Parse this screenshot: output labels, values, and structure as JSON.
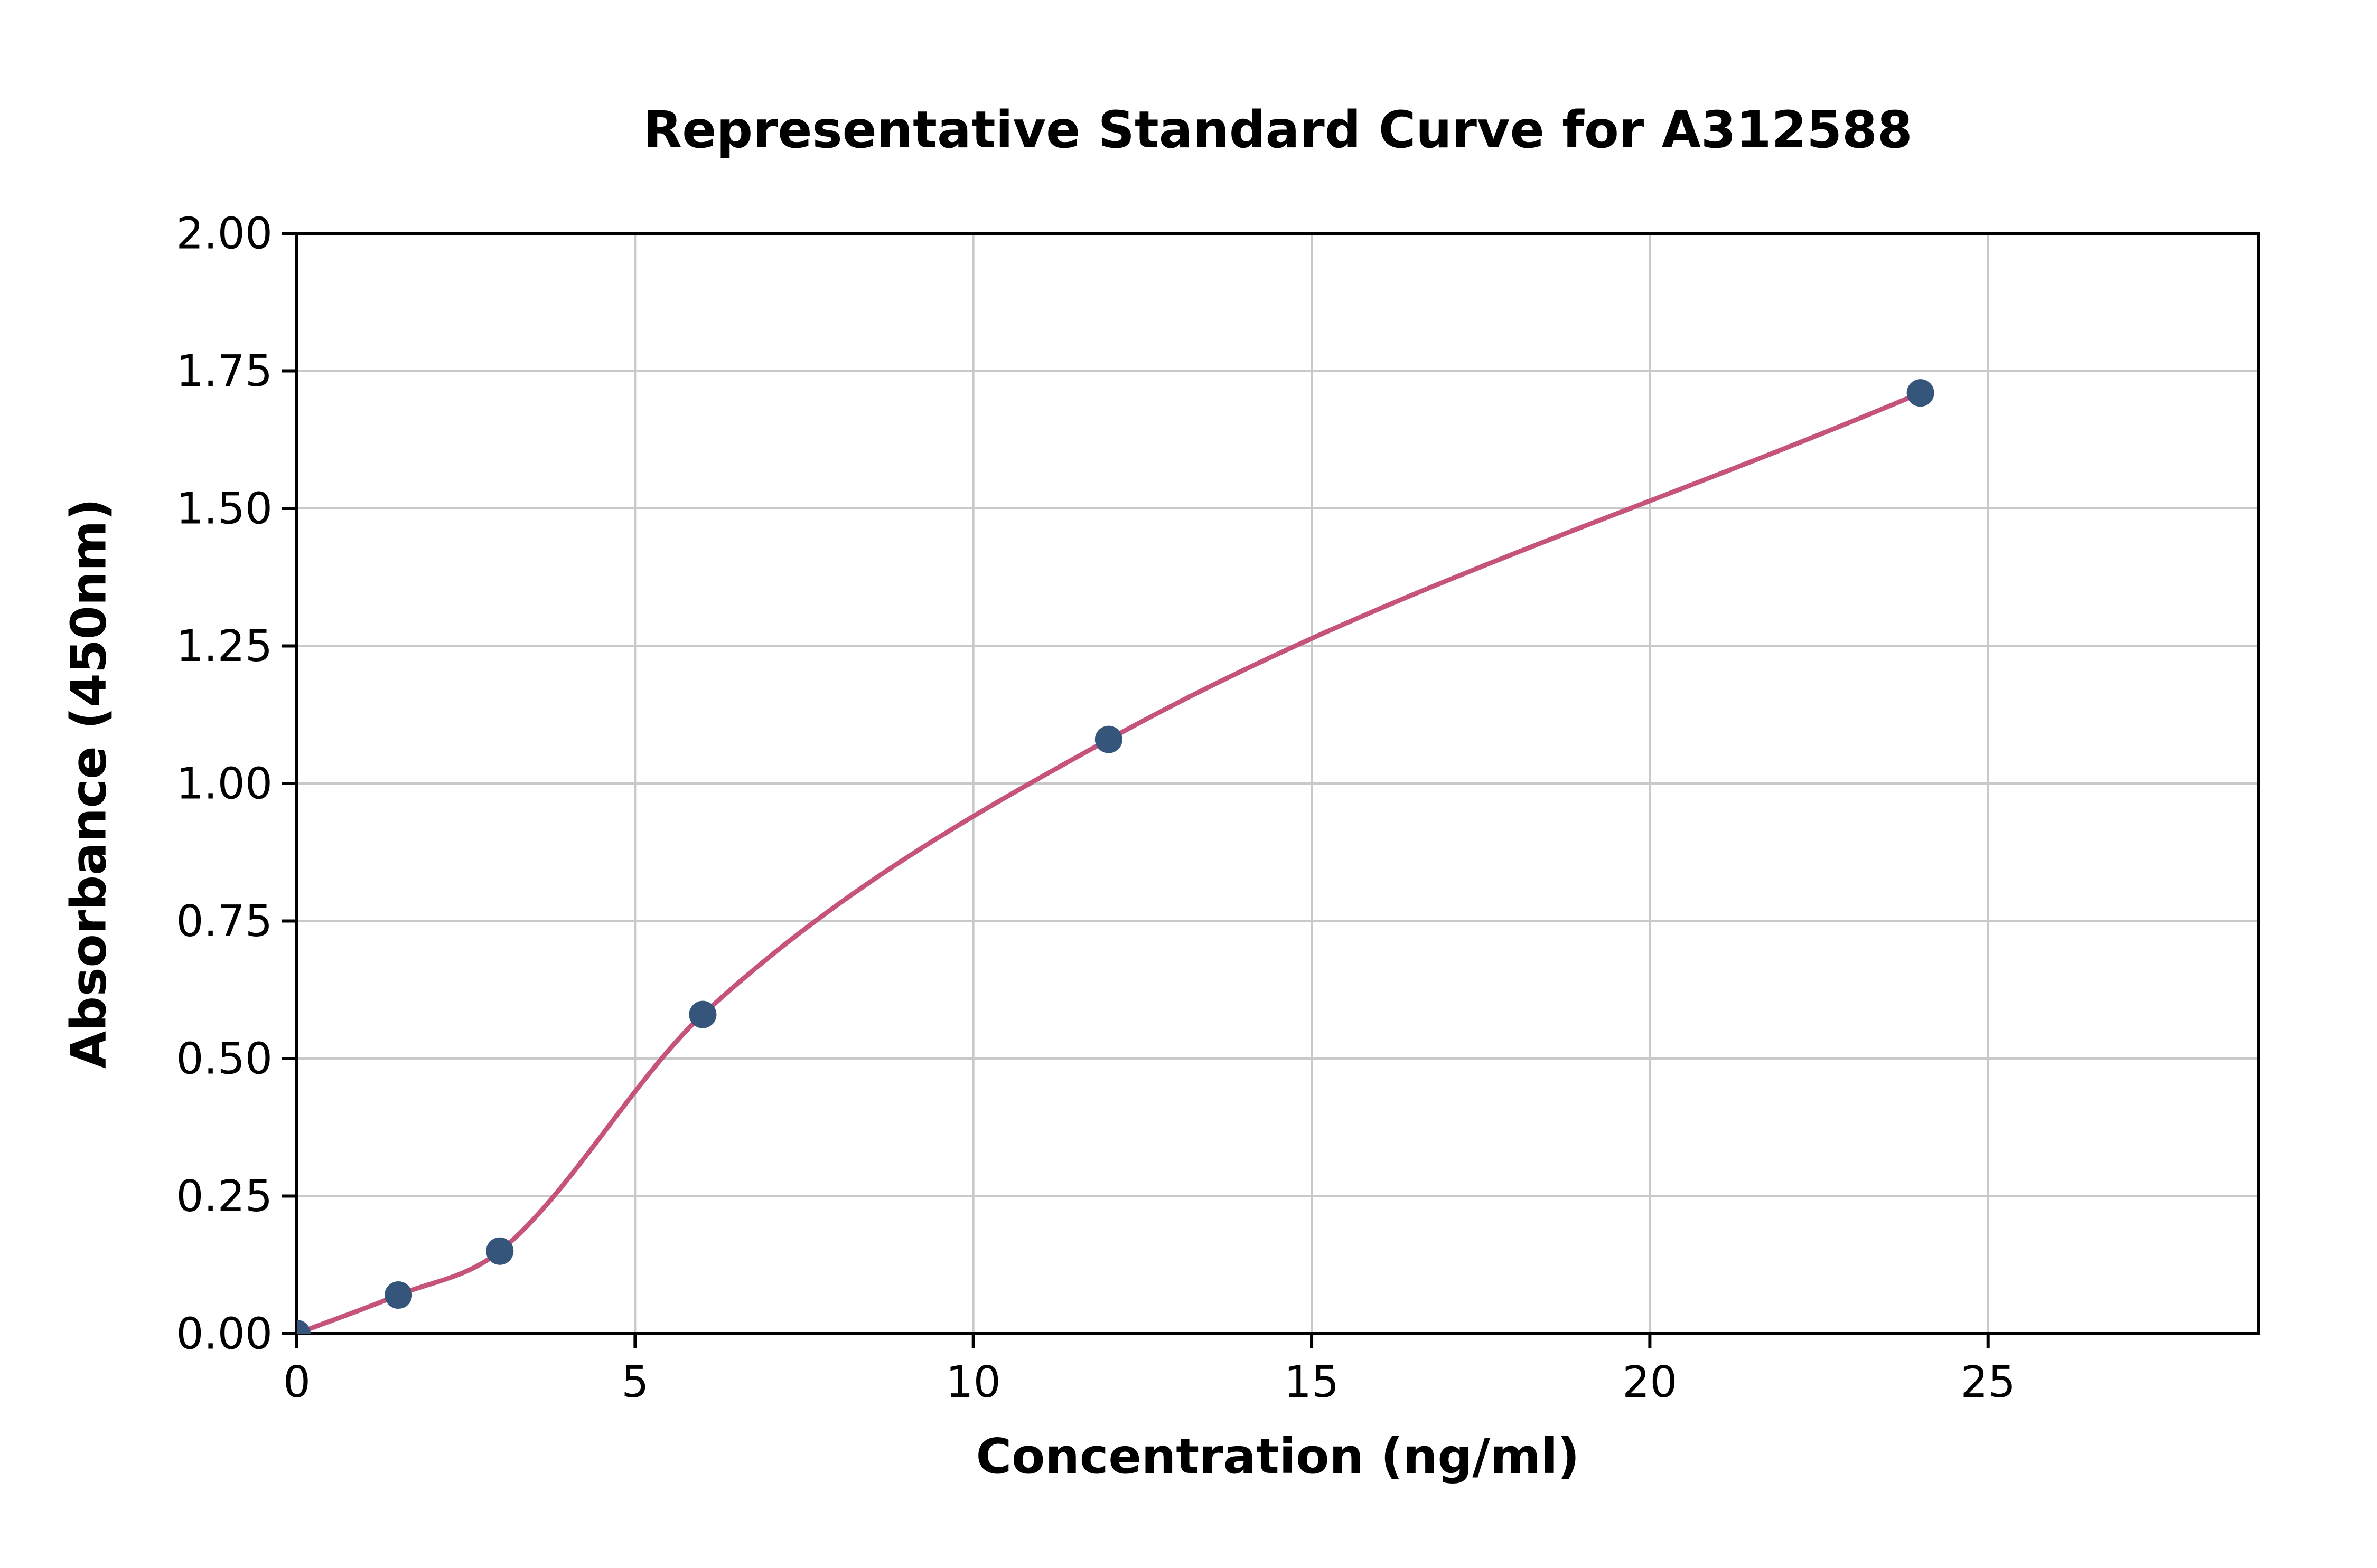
{
  "chart_data": {
    "type": "scatter",
    "title": "Representative Standard Curve for A312588",
    "xlabel": "Concentration (ng/ml)",
    "ylabel": "Absorbance (450nm)",
    "x": [
      0,
      1.5,
      3,
      6,
      12,
      24
    ],
    "y": [
      0.0,
      0.07,
      0.15,
      0.58,
      1.08,
      1.71
    ],
    "has_fit_curve": true,
    "xlim": [
      0,
      29
    ],
    "ylim": [
      0,
      2.0
    ],
    "xticks": [
      0,
      5,
      10,
      15,
      20,
      25
    ],
    "yticks": [
      0,
      0.25,
      0.5,
      0.75,
      1.0,
      1.25,
      1.5,
      1.75,
      2.0
    ],
    "ytick_decimals": 2,
    "grid": true,
    "legend": "none",
    "colors": {
      "point": "#35567a",
      "curve": "#c5537b",
      "grid": "#c9c9c9",
      "frame": "#000000",
      "text": "#000000"
    }
  }
}
